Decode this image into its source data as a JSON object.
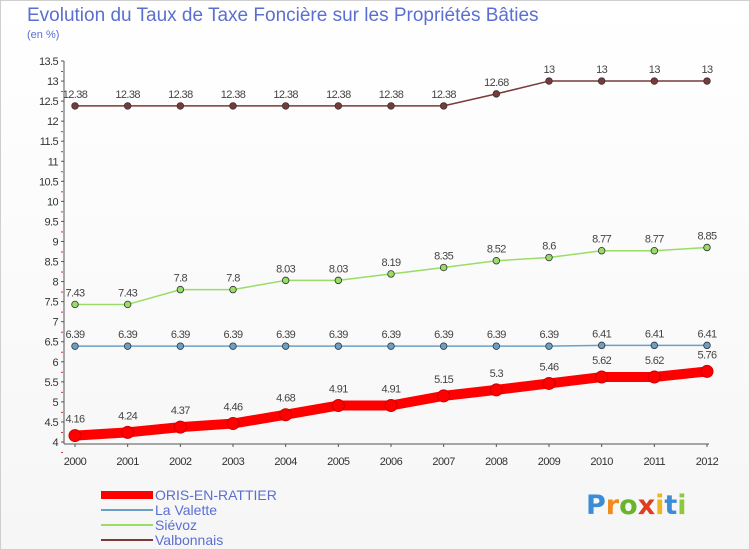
{
  "chart_data": {
    "type": "line",
    "title": "Evolution du Taux de Taxe Foncière sur les Propriétés Bâties",
    "subtitle": "(en %)",
    "x": [
      2000,
      2001,
      2002,
      2003,
      2004,
      2005,
      2006,
      2007,
      2008,
      2009,
      2010,
      2011,
      2012
    ],
    "ylim": [
      4,
      13.5
    ],
    "ystep": 0.5,
    "grid": false,
    "legend_position": "bottom-left",
    "series": [
      {
        "name": "ORIS-EN-RATTIER",
        "color": "#ff0000",
        "values": [
          4.16,
          4.24,
          4.37,
          4.46,
          4.68,
          4.91,
          4.91,
          5.15,
          5.3,
          5.46,
          5.62,
          5.62,
          5.76
        ],
        "labels": [
          "4.16",
          "4.24",
          "4.37",
          "4.46",
          "4.68",
          "4.91",
          "4.91",
          "5.15",
          "5.3",
          "5.46",
          "5.62",
          "5.62",
          "5.76"
        ]
      },
      {
        "name": "La Valette",
        "color": "#6aa0c8",
        "values": [
          6.39,
          6.39,
          6.39,
          6.39,
          6.39,
          6.39,
          6.39,
          6.39,
          6.39,
          6.39,
          6.41,
          6.41,
          6.41
        ],
        "labels": [
          "6.39",
          "6.39",
          "6.39",
          "6.39",
          "6.39",
          "6.39",
          "6.39",
          "6.39",
          "6.39",
          "6.39",
          "6.41",
          "6.41",
          "6.41"
        ]
      },
      {
        "name": "Siévoz",
        "color": "#99dd66",
        "values": [
          7.43,
          7.43,
          7.8,
          7.8,
          8.03,
          8.03,
          8.19,
          8.35,
          8.52,
          8.6,
          8.77,
          8.77,
          8.85
        ],
        "labels": [
          "7.43",
          "7.43",
          "7.8",
          "7.8",
          "8.03",
          "8.03",
          "8.19",
          "8.35",
          "8.52",
          "8.6",
          "8.77",
          "8.77",
          "8.85"
        ]
      },
      {
        "name": "Valbonnais",
        "color": "#7a3a3a",
        "values": [
          12.38,
          12.38,
          12.38,
          12.38,
          12.38,
          12.38,
          12.38,
          12.38,
          12.68,
          13,
          13,
          13,
          13
        ],
        "labels": [
          "12.38",
          "12.38",
          "12.38",
          "12.38",
          "12.38",
          "12.38",
          "12.38",
          "12.38",
          "12.68",
          "13",
          "13",
          "13",
          "13"
        ]
      }
    ]
  },
  "logo": {
    "text": "Proxiti",
    "letter_colors": [
      "#3c8cd6",
      "#f08c1e",
      "#6ab42a",
      "#e03c1e",
      "#f0b41e",
      "#3c8cd6",
      "#8cc83c"
    ]
  }
}
